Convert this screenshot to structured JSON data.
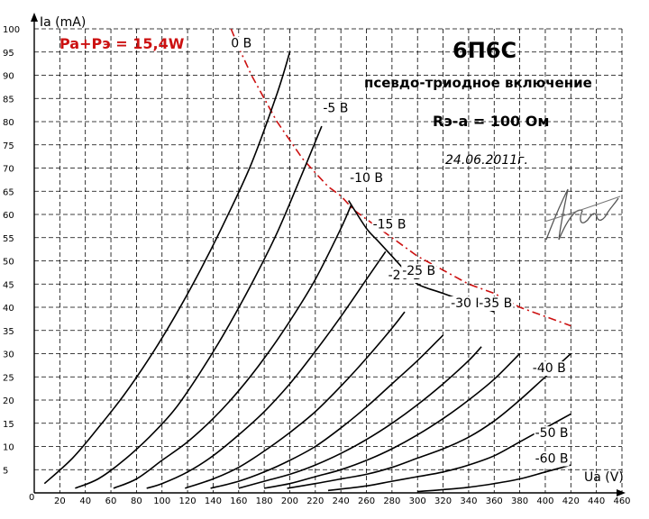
{
  "chart_data": {
    "type": "line",
    "title": "6П6С",
    "subtitle": "псевдо-триодное включение",
    "annotations": {
      "resistance": "Rэ-а = 100 Ом",
      "date": "24.06.2011г.",
      "power": "Pa+Pэ = 15,4W",
      "power_color": "#cc1111"
    },
    "xlabel": "Ua (V)",
    "ylabel": "Ia (mA)",
    "xlim": [
      0,
      460
    ],
    "ylim": [
      0,
      100
    ],
    "x_ticks": [
      20,
      40,
      60,
      80,
      100,
      120,
      140,
      160,
      180,
      200,
      220,
      240,
      260,
      280,
      300,
      320,
      340,
      360,
      380,
      400,
      420,
      440,
      460
    ],
    "y_ticks": [
      0,
      5,
      10,
      15,
      20,
      25,
      30,
      35,
      40,
      45,
      50,
      55,
      60,
      65,
      70,
      75,
      80,
      85,
      90,
      95,
      100
    ],
    "grid": true,
    "series": [
      {
        "name": "0 В",
        "x": [
          8,
          30,
          50,
          70,
          90,
          110,
          130,
          150,
          170,
          190,
          200
        ],
        "y": [
          2,
          7.5,
          14,
          21,
          29,
          38,
          48,
          59,
          71,
          86,
          95
        ]
      },
      {
        "name": "-5 В",
        "x": [
          32,
          50,
          70,
          90,
          110,
          130,
          150,
          170,
          190,
          210,
          225
        ],
        "y": [
          1,
          3,
          7,
          12,
          18,
          26,
          35,
          45,
          56,
          69,
          79
        ]
      },
      {
        "name": "-10 В",
        "x": [
          62,
          80,
          100,
          120,
          140,
          160,
          180,
          200,
          220,
          240,
          248
        ],
        "y": [
          1,
          3,
          7,
          11,
          16,
          22,
          29,
          37,
          46,
          57,
          62
        ]
      },
      {
        "name": "-15 В",
        "x": [
          88,
          100,
          120,
          140,
          160,
          180,
          200,
          220,
          240,
          260,
          275
        ],
        "y": [
          1,
          2,
          4.5,
          8,
          12.5,
          17.5,
          23.5,
          30.5,
          38,
          46,
          52
        ]
      },
      {
        "name": "-20 В",
        "x": [
          118,
          140,
          160,
          180,
          200,
          220,
          240,
          260,
          280,
          290
        ],
        "y": [
          1,
          3,
          5.5,
          9,
          13,
          17.5,
          23,
          29,
          35.5,
          39
        ]
      },
      {
        "name": "-25 В",
        "x": [
          138,
          160,
          180,
          200,
          220,
          240,
          260,
          280,
          300,
          320
        ],
        "y": [
          1,
          2.5,
          4.5,
          7,
          10,
          14,
          18.5,
          23.5,
          28.5,
          34
        ]
      },
      {
        "name": "-30 В",
        "x": [
          160,
          180,
          200,
          220,
          240,
          260,
          280,
          300,
          320,
          340,
          350
        ],
        "y": [
          1,
          2.5,
          4,
          6,
          8.5,
          11.5,
          15,
          19,
          23.5,
          28.5,
          31.5
        ]
      },
      {
        "name": "-35 В",
        "x": [
          180,
          200,
          220,
          240,
          260,
          280,
          300,
          320,
          340,
          360,
          380
        ],
        "y": [
          1,
          2,
          3.5,
          5,
          7,
          9.5,
          12.5,
          16,
          20,
          24.5,
          30
        ]
      },
      {
        "name": "-40 В",
        "x": [
          198,
          220,
          240,
          260,
          280,
          300,
          320,
          340,
          360,
          380,
          400,
          420
        ],
        "y": [
          1,
          2,
          3,
          4,
          5.5,
          7.5,
          9.5,
          12,
          15.5,
          20,
          25,
          30
        ]
      },
      {
        "name": "-50 В",
        "x": [
          230,
          260,
          280,
          300,
          320,
          340,
          360,
          380,
          400,
          420
        ],
        "y": [
          0.5,
          1.5,
          2.5,
          3.5,
          4.5,
          6,
          8,
          11,
          14,
          17
        ]
      },
      {
        "name": "-60 В",
        "x": [
          300,
          320,
          340,
          360,
          380,
          400,
          420
        ],
        "y": [
          0.3,
          0.7,
          1.2,
          2,
          3,
          4.5,
          6
        ]
      },
      {
        "name": "",
        "x": [
          246,
          260,
          270,
          290,
          300,
          320,
          340,
          360
        ],
        "y": [
          63,
          57,
          54,
          48,
          45,
          43,
          41,
          39
        ]
      }
    ],
    "power_curve": {
      "x": [
        154,
        160,
        170,
        180,
        190,
        200,
        210,
        220,
        230,
        240,
        250,
        260,
        280,
        300,
        320,
        340,
        360,
        380,
        400,
        420
      ],
      "y": [
        100,
        96,
        90,
        85,
        80,
        76,
        72,
        69,
        66,
        64,
        61,
        59,
        55,
        51,
        48,
        45,
        43,
        40,
        38,
        36
      ]
    },
    "curve_color": "#000000",
    "grid_color": "#000000"
  }
}
